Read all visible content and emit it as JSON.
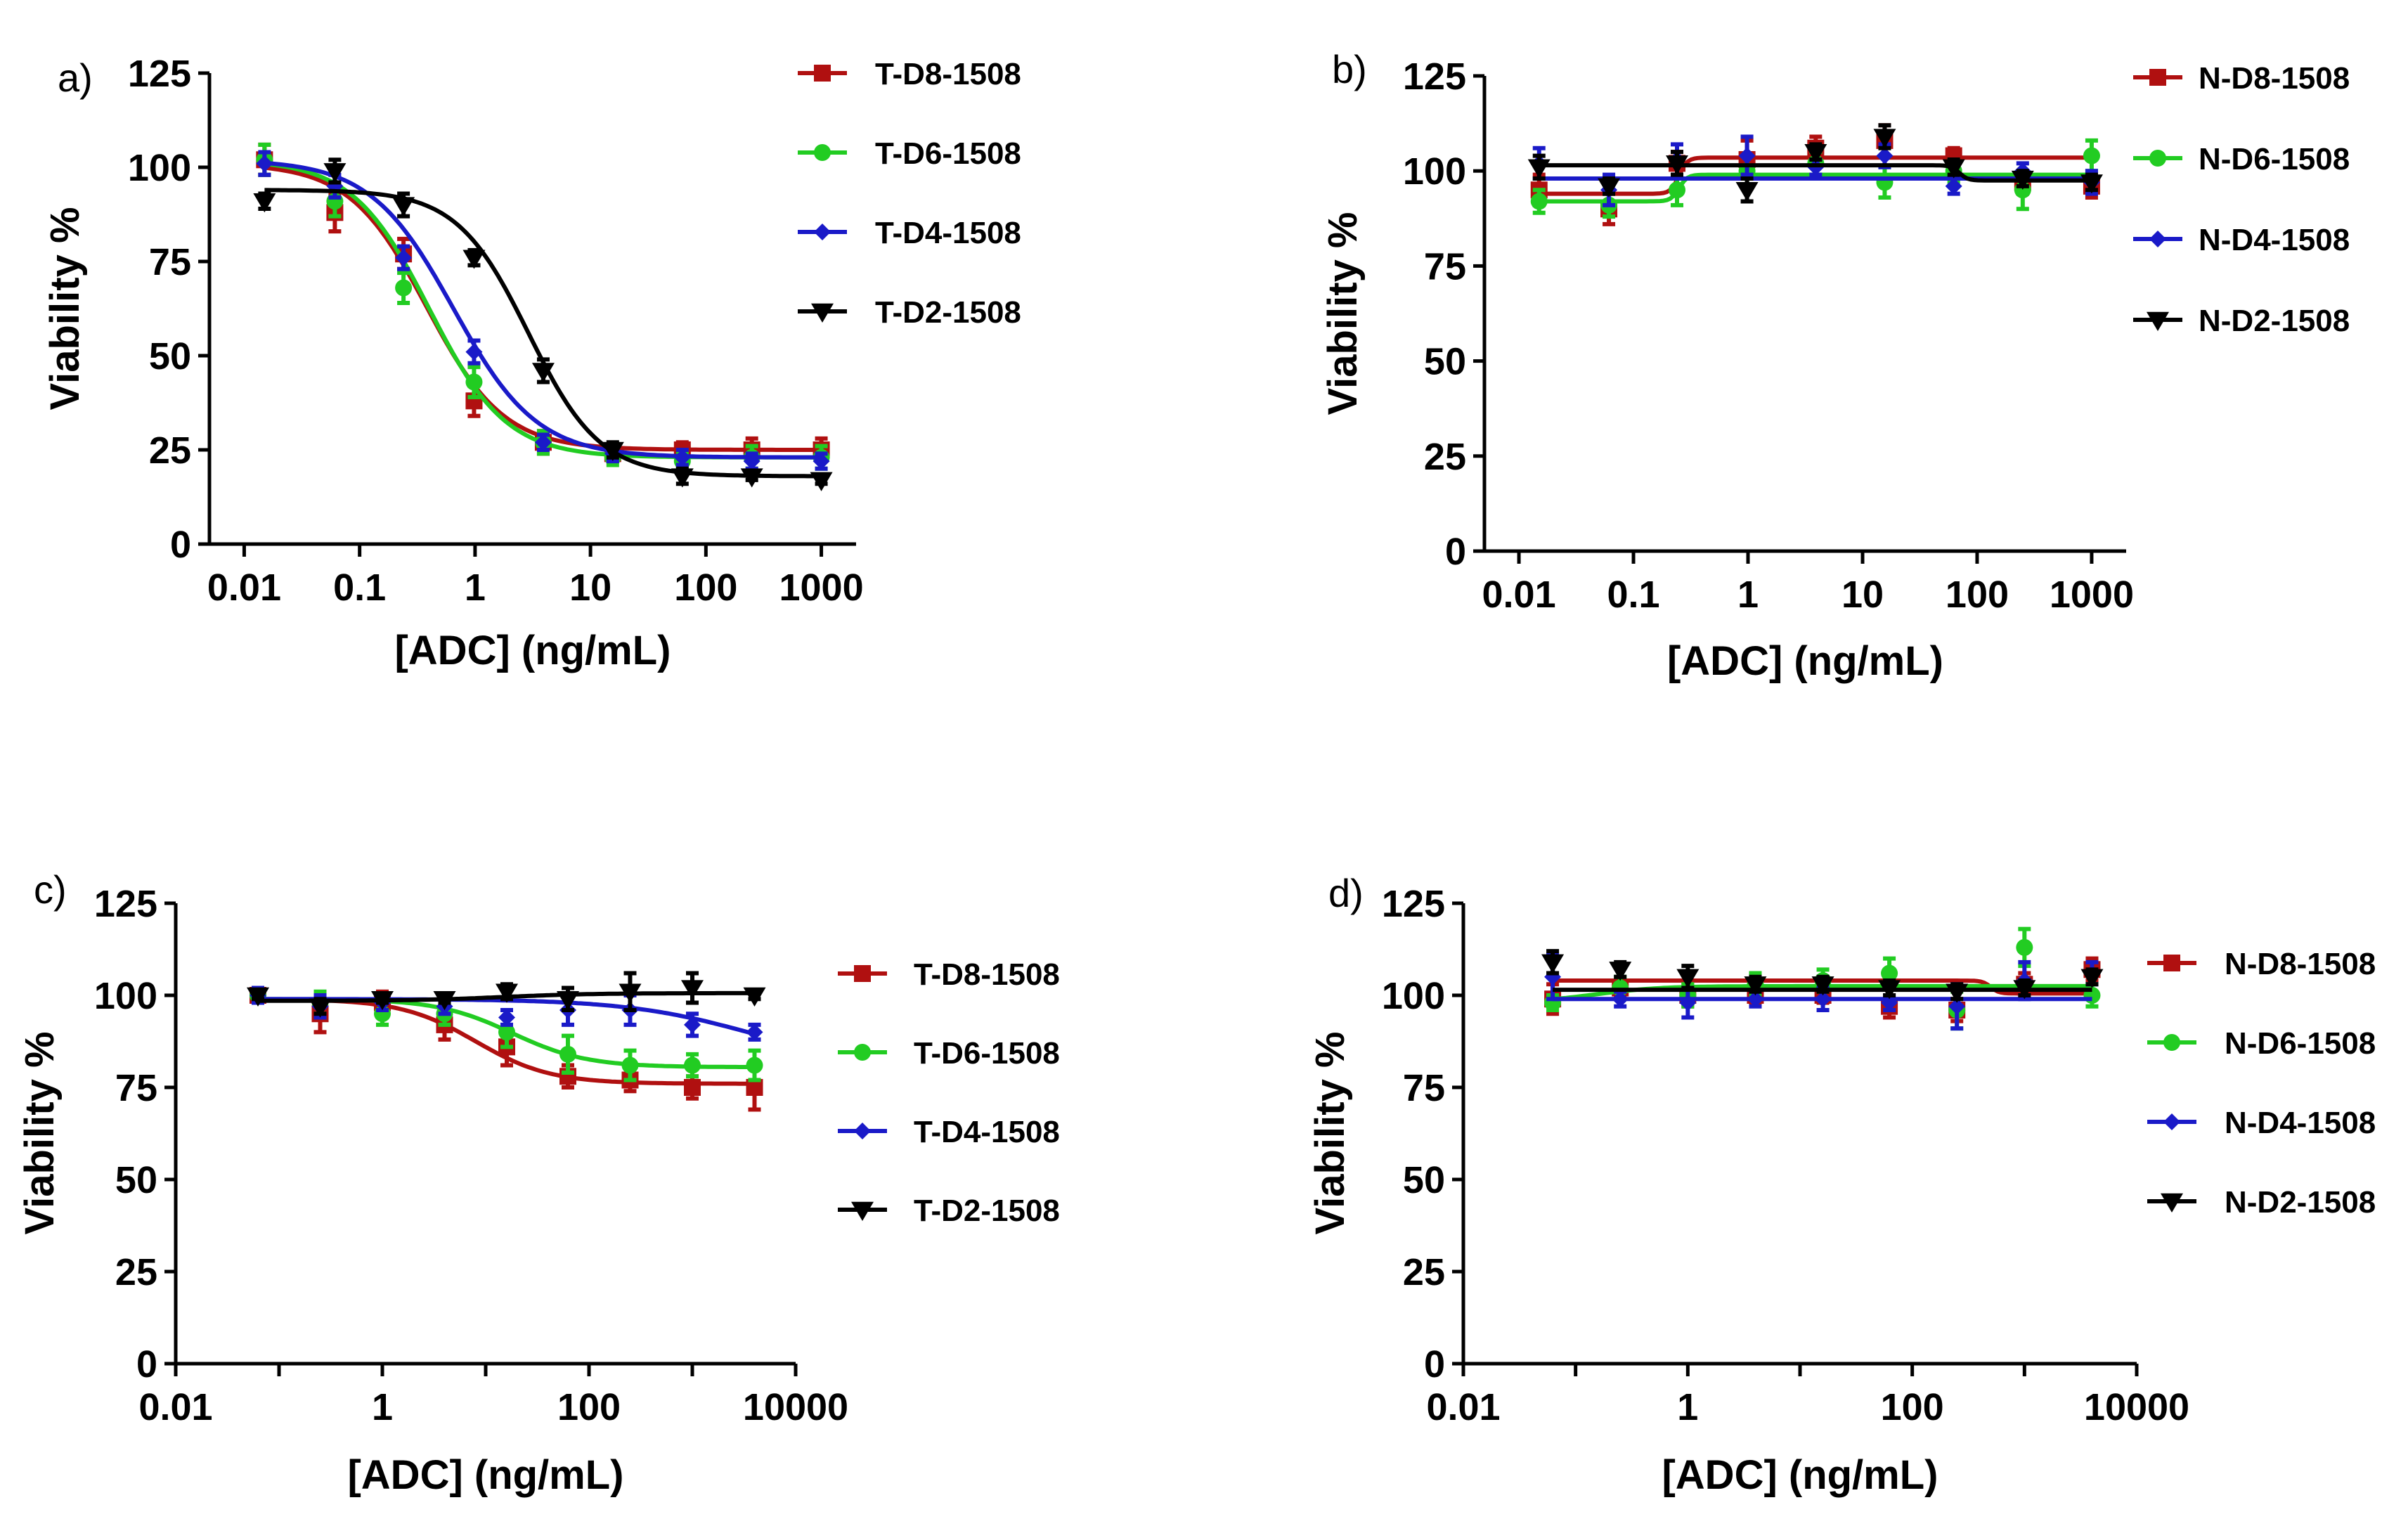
{
  "colors": {
    "D8": "#b01010",
    "D6": "#22cc22",
    "D4": "#1a1ac8",
    "D2": "#000000",
    "axis": "#000000"
  },
  "chart_data": [
    {
      "panel": "a)",
      "type": "line",
      "x_scale": "log",
      "xlabel": "[ADC] (ng/mL)",
      "ylabel": "Viability %",
      "xlim": [
        0.005,
        2000
      ],
      "ylim": [
        0,
        125
      ],
      "x_ticks": [
        {
          "value": 0.01,
          "label": "0.01"
        },
        {
          "value": 0.1,
          "label": "0.1"
        },
        {
          "value": 1,
          "label": "1"
        },
        {
          "value": 10,
          "label": "10"
        },
        {
          "value": 100,
          "label": "100"
        },
        {
          "value": 1000,
          "label": "1000"
        }
      ],
      "y_ticks": [
        {
          "value": 0,
          "label": "0"
        },
        {
          "value": 25,
          "label": "25"
        },
        {
          "value": 50,
          "label": "50"
        },
        {
          "value": 75,
          "label": "75"
        },
        {
          "value": 100,
          "label": "100"
        },
        {
          "value": 125,
          "label": "125"
        }
      ],
      "legend_position": "top-right",
      "x": [
        0.015,
        0.061,
        0.24,
        0.98,
        3.9,
        15.6,
        62.5,
        250,
        1000
      ],
      "series": [
        {
          "name": "T-D8-1508",
          "key": "D8",
          "marker": "square",
          "values": [
            102,
            88,
            77,
            38,
            27,
            24,
            25,
            25,
            25
          ],
          "errors": [
            4,
            5,
            4,
            4,
            3,
            2,
            2,
            3,
            3
          ],
          "fit": {
            "top": 101,
            "bottom": 25,
            "ic50": 0.38,
            "hill": 1.3
          }
        },
        {
          "name": "T-D6-1508",
          "key": "D6",
          "marker": "circle",
          "values": [
            102,
            91,
            68,
            43,
            27,
            23,
            22,
            23,
            23
          ],
          "errors": [
            4,
            4,
            4,
            4,
            3,
            2,
            2,
            3,
            3
          ],
          "fit": {
            "top": 102,
            "bottom": 23,
            "ic50": 0.4,
            "hill": 1.3
          }
        },
        {
          "name": "T-D4-1508",
          "key": "D4",
          "marker": "diamond",
          "values": [
            101,
            95,
            76,
            51,
            27,
            24,
            23,
            22,
            22
          ],
          "errors": [
            3,
            3,
            3,
            3,
            2,
            2,
            2,
            2,
            2
          ],
          "fit": {
            "top": 102,
            "bottom": 23,
            "ic50": 0.65,
            "hill": 1.2
          }
        },
        {
          "name": "T-D2-1508",
          "key": "D2",
          "marker": "triangle-down",
          "values": [
            91,
            99,
            90,
            76,
            46,
            25,
            18,
            18,
            17
          ],
          "errors": [
            2,
            3,
            3,
            2,
            3,
            2,
            2,
            1,
            1
          ],
          "fit": {
            "top": 94,
            "bottom": 18,
            "ic50": 2.9,
            "hill": 1.4
          }
        }
      ]
    },
    {
      "panel": "b)",
      "type": "line",
      "x_scale": "log",
      "xlabel": "[ADC] (ng/mL)",
      "ylabel": "Viability %",
      "xlim": [
        0.005,
        2000
      ],
      "ylim": [
        0,
        125
      ],
      "x_ticks": [
        {
          "value": 0.01,
          "label": "0.01"
        },
        {
          "value": 0.1,
          "label": "0.1"
        },
        {
          "value": 1,
          "label": "1"
        },
        {
          "value": 10,
          "label": "10"
        },
        {
          "value": 100,
          "label": "100"
        },
        {
          "value": 1000,
          "label": "1000"
        }
      ],
      "y_ticks": [
        {
          "value": 0,
          "label": "0"
        },
        {
          "value": 25,
          "label": "25"
        },
        {
          "value": 50,
          "label": "50"
        },
        {
          "value": 75,
          "label": "75"
        },
        {
          "value": 100,
          "label": "100"
        },
        {
          "value": 125,
          "label": "125"
        }
      ],
      "legend_position": "top-right",
      "x": [
        0.015,
        0.061,
        0.24,
        0.98,
        3.9,
        15.6,
        62.5,
        250,
        1000
      ],
      "series": [
        {
          "name": "N-D8-1508",
          "key": "D8",
          "marker": "square",
          "values": [
            95,
            90,
            102,
            103,
            106,
            108,
            104,
            97,
            96
          ],
          "errors": [
            4,
            4,
            3,
            5,
            3,
            4,
            2,
            3,
            3
          ],
          "fit": {
            "top": 103.5,
            "bottom": 94,
            "ic50": 0.25,
            "hill": -12
          }
        },
        {
          "name": "N-D6-1508",
          "key": "D6",
          "marker": "circle",
          "values": [
            92,
            91,
            95,
            100,
            102,
            97,
            100,
            95,
            104
          ],
          "errors": [
            3,
            3,
            4,
            4,
            3,
            4,
            3,
            5,
            4
          ],
          "fit": {
            "top": 99,
            "bottom": 92,
            "ic50": 0.25,
            "hill": -12
          }
        },
        {
          "name": "N-D4-1508",
          "key": "D4",
          "marker": "diamond",
          "values": [
            102,
            95,
            103,
            104,
            101,
            104,
            96,
            100,
            97
          ],
          "errors": [
            4,
            4,
            4,
            5,
            2,
            3,
            2,
            2,
            3
          ],
          "fit": {
            "top": 98,
            "bottom": 98,
            "ic50": 1,
            "hill": 1
          }
        },
        {
          "name": "N-D2-1508",
          "key": "D2",
          "marker": "triangle-down",
          "values": [
            101,
            96,
            102,
            95,
            105,
            109,
            101,
            98,
            97
          ],
          "errors": [
            3,
            2,
            3,
            3,
            2,
            3,
            2,
            2,
            2
          ],
          "fit": {
            "top": 101.5,
            "bottom": 97.5,
            "ic50": 70,
            "hill": 12
          }
        }
      ]
    },
    {
      "panel": "c)",
      "type": "line",
      "x_scale": "log",
      "xlabel": "[ADC] (ng/mL)",
      "ylabel": "Viability %",
      "xlim": [
        0.01,
        10000
      ],
      "ylim": [
        0,
        125
      ],
      "x_ticks": [
        {
          "value": 0.01,
          "label": "0.01"
        },
        {
          "value": 1,
          "label": "1"
        },
        {
          "value": 100,
          "label": "100"
        },
        {
          "value": 10000,
          "label": "10000"
        }
      ],
      "y_ticks": [
        {
          "value": 0,
          "label": "0"
        },
        {
          "value": 25,
          "label": "25"
        },
        {
          "value": 50,
          "label": "50"
        },
        {
          "value": 75,
          "label": "75"
        },
        {
          "value": 100,
          "label": "100"
        },
        {
          "value": 125,
          "label": "125"
        }
      ],
      "legend_position": "top-right",
      "x": [
        0.0625,
        0.25,
        1,
        4,
        16,
        62.5,
        250,
        1000,
        4000
      ],
      "series": [
        {
          "name": "T-D8-1508",
          "key": "D8",
          "marker": "square",
          "values": [
            100,
            95,
            98,
            92,
            86,
            78,
            77,
            75,
            75
          ],
          "errors": [
            2,
            5,
            3,
            4,
            5,
            3,
            3,
            3,
            6
          ],
          "fit": {
            "top": 99,
            "bottom": 76,
            "ic50": 8,
            "hill": 1.2
          }
        },
        {
          "name": "T-D6-1508",
          "key": "D6",
          "marker": "circle",
          "values": [
            100,
            98,
            95,
            95,
            90,
            84,
            81,
            81,
            81
          ],
          "errors": [
            2,
            3,
            3,
            3,
            4,
            5,
            4,
            3,
            4
          ],
          "fit": {
            "top": 99,
            "bottom": 80.5,
            "ic50": 18,
            "hill": 1.2
          }
        },
        {
          "name": "T-D4-1508",
          "key": "D4",
          "marker": "diamond",
          "values": [
            100,
            97,
            98,
            97,
            94,
            96,
            96,
            92,
            90
          ],
          "errors": [
            2,
            3,
            2,
            2,
            2,
            4,
            4,
            3,
            2
          ],
          "fit": {
            "top": 99,
            "bottom": 80,
            "ic50": 4000,
            "hill": 0.7
          }
        },
        {
          "name": "T-D2-1508",
          "key": "D2",
          "marker": "triangle-down",
          "values": [
            100,
            97,
            99,
            99,
            101,
            99,
            101,
            102,
            100
          ],
          "errors": [
            1,
            2,
            1,
            1,
            2,
            3,
            5,
            4,
            1
          ],
          "fit": {
            "top": 98.5,
            "bottom": 100.6,
            "ic50": 15,
            "hill": 1
          }
        }
      ]
    },
    {
      "panel": "d)",
      "type": "line",
      "x_scale": "log",
      "xlabel": "[ADC] (ng/mL)",
      "ylabel": "Viability %",
      "xlim": [
        0.01,
        10000
      ],
      "ylim": [
        0,
        125
      ],
      "x_ticks": [
        {
          "value": 0.01,
          "label": "0.01"
        },
        {
          "value": 1,
          "label": "1"
        },
        {
          "value": 100,
          "label": "100"
        },
        {
          "value": 10000,
          "label": "10000"
        }
      ],
      "y_ticks": [
        {
          "value": 0,
          "label": "0"
        },
        {
          "value": 25,
          "label": "25"
        },
        {
          "value": 50,
          "label": "50"
        },
        {
          "value": 75,
          "label": "75"
        },
        {
          "value": 100,
          "label": "100"
        },
        {
          "value": 125,
          "label": "125"
        }
      ],
      "legend_position": "top-right",
      "x": [
        0.0625,
        0.25,
        1,
        4,
        16,
        62.5,
        250,
        1000,
        4000
      ],
      "series": [
        {
          "name": "N-D8-1508",
          "key": "D8",
          "marker": "square",
          "values": [
            99,
            102,
            100,
            100,
            100,
            97,
            96,
            103,
            107
          ],
          "errors": [
            4,
            2,
            3,
            2,
            2,
            3,
            3,
            3,
            3
          ],
          "fit": {
            "top": 104,
            "bottom": 100.5,
            "ic50": 500,
            "hill": 12
          }
        },
        {
          "name": "N-D6-1508",
          "key": "D6",
          "marker": "circle",
          "values": [
            98,
            102,
            100,
            103,
            104,
            106,
            96,
            113,
            100
          ],
          "errors": [
            2,
            3,
            3,
            3,
            3,
            4,
            5,
            5,
            3
          ],
          "fit": {
            "top": 98,
            "bottom": 102.5,
            "ic50": 0.15,
            "hill": 1.5
          }
        },
        {
          "name": "N-D4-1508",
          "key": "D4",
          "marker": "diamond",
          "values": [
            105,
            99,
            98,
            99,
            99,
            98,
            97,
            104,
            106
          ],
          "errors": [
            6,
            2,
            4,
            2,
            3,
            2,
            6,
            5,
            3
          ],
          "fit": {
            "top": 99,
            "bottom": 99,
            "ic50": 1,
            "hill": 1
          }
        },
        {
          "name": "N-D2-1508",
          "key": "D2",
          "marker": "triangle-down",
          "values": [
            109,
            107,
            105,
            103,
            103,
            102,
            101,
            102,
            105
          ],
          "errors": [
            3,
            2,
            3,
            2,
            2,
            2,
            2,
            2,
            2
          ],
          "fit": {
            "top": 101.5,
            "bottom": 101.5,
            "ic50": 1,
            "hill": 1
          }
        }
      ]
    }
  ]
}
